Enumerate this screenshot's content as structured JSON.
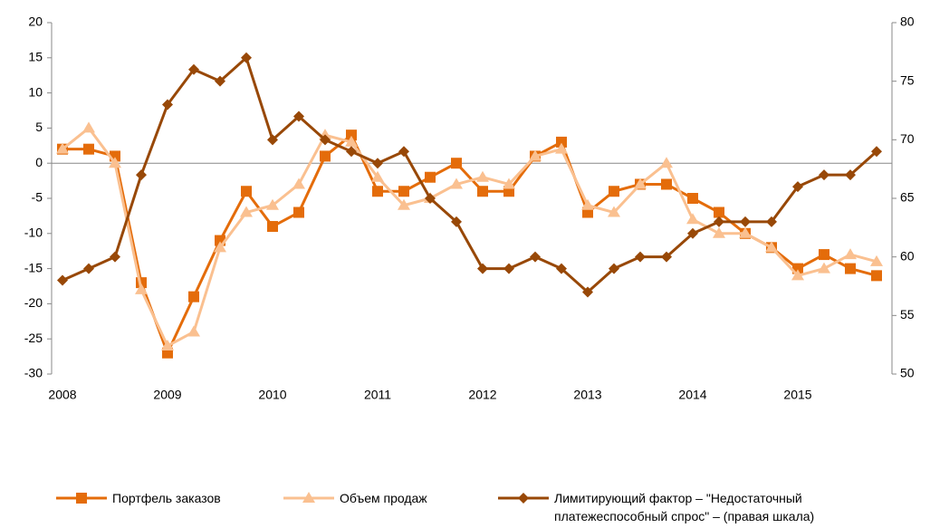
{
  "chart_data": {
    "type": "line",
    "categories": [
      "2008",
      null,
      null,
      null,
      "2009",
      null,
      null,
      null,
      "2010",
      null,
      null,
      null,
      "2011",
      null,
      null,
      null,
      "2012",
      null,
      null,
      null,
      "2013",
      null,
      null,
      null,
      "2014",
      null,
      null,
      null,
      "2015",
      null,
      null,
      null
    ],
    "ylim": [
      -30,
      20
    ],
    "yticks": [
      -30,
      -25,
      -20,
      -15,
      -10,
      -5,
      0,
      5,
      10,
      15,
      20
    ],
    "y2lim": [
      50,
      80
    ],
    "y2ticks": [
      50,
      55,
      60,
      65,
      70,
      75,
      80
    ],
    "legend": "bottom",
    "series": [
      {
        "name": "Портфель заказов",
        "color": "#e46c0a",
        "marker": "square",
        "values": [
          2,
          2,
          1,
          -17,
          -27,
          -19,
          -11,
          -4,
          -9,
          -7,
          1,
          4,
          -4,
          -4,
          -2,
          0,
          -4,
          -4,
          1,
          3,
          -7,
          -4,
          -3,
          -3,
          -5,
          -7,
          -10,
          -12,
          -15,
          -13,
          -15,
          -16
        ]
      },
      {
        "name": "Объем продаж",
        "color": "#fac090",
        "marker": "triangle",
        "values": [
          2,
          5,
          0,
          -18,
          -26,
          -24,
          -12,
          -7,
          -6,
          -3,
          4,
          3,
          -2,
          -6,
          -5,
          -3,
          -2,
          -3,
          1,
          2,
          -6,
          -7,
          -3,
          0,
          -8,
          -10,
          -10,
          -12,
          -16,
          -15,
          -13,
          -14
        ]
      },
      {
        "name": "Лимитирующий фактор – \"Недостаточный платежеспособный спрос\" – (правая шкала)",
        "color": "#984807",
        "marker": "diamond",
        "axis": "y2",
        "values": [
          58,
          59,
          60,
          67,
          73,
          76,
          75,
          77,
          70,
          72,
          70,
          69,
          68,
          69,
          65,
          63,
          59,
          59,
          60,
          59,
          57,
          59,
          60,
          60,
          62,
          63,
          63,
          63,
          66,
          67,
          67,
          69
        ]
      }
    ]
  }
}
